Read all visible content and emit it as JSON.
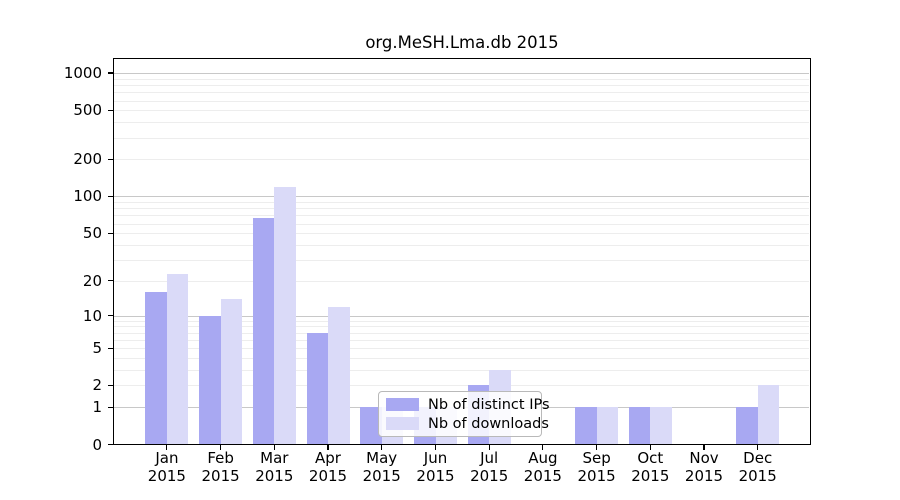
{
  "chart_data": {
    "type": "bar",
    "title": "org.MeSH.Lma.db 2015",
    "categories": [
      "Jan",
      "Feb",
      "Mar",
      "Apr",
      "May",
      "Jun",
      "Jul",
      "Aug",
      "Sep",
      "Oct",
      "Nov",
      "Dec"
    ],
    "year_label": "2015",
    "series": [
      {
        "name": "Nb of distinct IPs",
        "color": "#a8a8f2",
        "values": [
          16,
          10,
          66,
          7,
          1,
          1,
          2,
          0,
          1,
          1,
          0,
          1
        ]
      },
      {
        "name": "Nb of downloads",
        "color": "#dadaf8",
        "values": [
          23,
          14,
          120,
          12,
          1,
          1,
          3,
          0,
          1,
          1,
          0,
          2
        ]
      }
    ],
    "y_axis": {
      "scale": "log10(value+1)",
      "tick_labels": [
        0,
        1,
        2,
        5,
        10,
        20,
        50,
        100,
        200,
        500,
        1000
      ],
      "major_gridlines": [
        1,
        10,
        100,
        1000
      ],
      "minor_gridlines": [
        2,
        3,
        4,
        5,
        6,
        7,
        8,
        9,
        20,
        30,
        40,
        50,
        60,
        70,
        80,
        90,
        200,
        300,
        400,
        500,
        600,
        700,
        800,
        900
      ],
      "range_top": 1300
    },
    "legend": {
      "entries": [
        "Nb of distinct IPs",
        "Nb of downloads"
      ],
      "position": "inside bottom, left of center"
    },
    "grid": true,
    "colors": {
      "distinct_ips_bar": "#a8a8f2",
      "downloads_bar": "#dadaf8",
      "major_grid": "#c8c8c8",
      "minor_grid": "#ededed",
      "axis": "#000000",
      "background": "#ffffff"
    }
  }
}
